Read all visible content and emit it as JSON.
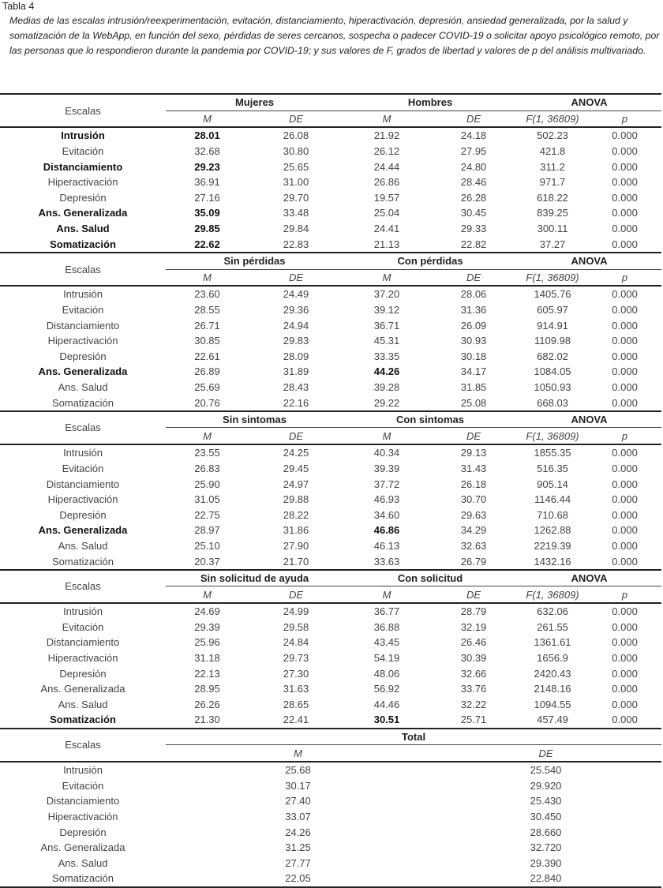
{
  "caption": "Tabla 4",
  "description": "Medias de las escalas intrusión/reexperimentación, evitación, distanciamiento, hiperactivación, depresión, ansiedad generalizada, por la salud y somatización de la WebApp, en función del sexo, pérdidas de seres cercanos, sospecha o padecer COVID-19 o solicitar apoyo psicológico remoto, por las personas que lo respondieron durante la pandemia por COVID-19; y sus valores de F, grados de libertad y valores de p del análisis multivariado.",
  "table": {
    "sections": [
      {
        "label": "Escalas",
        "groups": [
          "Mujeres",
          "Hombres",
          "ANOVA"
        ],
        "subheaders": [
          "M",
          "DE",
          "M",
          "DE",
          "F(1, 36809)",
          "p"
        ],
        "rows": [
          {
            "cells": [
              "Intrusión",
              "28.01",
              "26.08",
              "21.92",
              "24.18",
              "502.23",
              "0.000"
            ],
            "bold": [
              0,
              1
            ]
          },
          {
            "cells": [
              "Evitación",
              "32.68",
              "30.80",
              "26.12",
              "27.95",
              "421.8",
              "0.000"
            ]
          },
          {
            "cells": [
              "Distanciamiento",
              "29.23",
              "25.65",
              "24.44",
              "24.80",
              "311.2",
              "0.000"
            ],
            "bold": [
              0,
              1
            ]
          },
          {
            "cells": [
              "Hiperactivación",
              "36.91",
              "31.00",
              "26.86",
              "28.46",
              "971.7",
              "0.000"
            ]
          },
          {
            "cells": [
              "Depresión",
              "27.16",
              "29.70",
              "19.57",
              "26.28",
              "618.22",
              "0.000"
            ]
          },
          {
            "cells": [
              "Ans. Generalizada",
              "35.09",
              "33.48",
              "25.04",
              "30.45",
              "839.25",
              "0.000"
            ],
            "bold": [
              0,
              1
            ]
          },
          {
            "cells": [
              "Ans. Salud",
              "29.85",
              "29.84",
              "24.41",
              "29.33",
              "300.11",
              "0.000"
            ],
            "bold": [
              0,
              1
            ]
          },
          {
            "cells": [
              "Somatización",
              "22.62",
              "22.83",
              "21.13",
              "22.82",
              "37.27",
              "0.000"
            ],
            "bold": [
              0,
              1
            ]
          }
        ]
      },
      {
        "label": "Escalas",
        "groups": [
          "Sin pérdidas",
          "Con pérdidas",
          "ANOVA"
        ],
        "subheaders": [
          "M",
          "DE",
          "M",
          "DE",
          "F(1, 36809)",
          "p"
        ],
        "rows": [
          {
            "cells": [
              "Intrusión",
              "23.60",
              "24.49",
              "37.20",
              "28.06",
              "1405.76",
              "0.000"
            ]
          },
          {
            "cells": [
              "Evitación",
              "28.55",
              "29.36",
              "39.12",
              "31.36",
              "605.97",
              "0.000"
            ]
          },
          {
            "cells": [
              "Distanciamiento",
              "26.71",
              "24.94",
              "36.71",
              "26.09",
              "914.91",
              "0.000"
            ]
          },
          {
            "cells": [
              "Hiperactivación",
              "30.85",
              "29.83",
              "45.31",
              "30.93",
              "1109.98",
              "0.000"
            ]
          },
          {
            "cells": [
              "Depresión",
              "22.61",
              "28.09",
              "33.35",
              "30.18",
              "682.02",
              "0.000"
            ]
          },
          {
            "cells": [
              "Ans. Generalizada",
              "26.89",
              "31.89",
              "44.26",
              "34.17",
              "1084.05",
              "0.000"
            ],
            "bold": [
              0,
              3
            ]
          },
          {
            "cells": [
              "Ans. Salud",
              "25.69",
              "28.43",
              "39.28",
              "31.85",
              "1050.93",
              "0.000"
            ]
          },
          {
            "cells": [
              "Somatización",
              "20.76",
              "22.16",
              "29.22",
              "25.08",
              "668.03",
              "0.000"
            ]
          }
        ]
      },
      {
        "label": "Escalas",
        "groups": [
          "Sin sintomas",
          "Con sintomas",
          "ANOVA"
        ],
        "subheaders": [
          "M",
          "DE",
          "M",
          "DE",
          "F(1, 36809)",
          "p"
        ],
        "rows": [
          {
            "cells": [
              "Intrusión",
              "23.55",
              "24.25",
              "40.34",
              "29.13",
              "1855.35",
              "0.000"
            ]
          },
          {
            "cells": [
              "Evitación",
              "26.83",
              "29.45",
              "39.39",
              "31.43",
              "516.35",
              "0.000"
            ]
          },
          {
            "cells": [
              "Distanciamiento",
              "25.90",
              "24.97",
              "37.72",
              "26.18",
              "905.14",
              "0.000"
            ]
          },
          {
            "cells": [
              "Hiperactivación",
              "31.05",
              "29.88",
              "46.93",
              "30.70",
              "1146.44",
              "0.000"
            ]
          },
          {
            "cells": [
              "Depresión",
              "22.75",
              "28.22",
              "34.60",
              "29.63",
              "710.68",
              "0.000"
            ]
          },
          {
            "cells": [
              "Ans. Generalizada",
              "28.97",
              "31.86",
              "46.86",
              "34.29",
              "1262.88",
              "0.000"
            ],
            "bold": [
              0,
              3
            ]
          },
          {
            "cells": [
              "Ans. Salud",
              "25.10",
              "27.90",
              "46.13",
              "32.63",
              "2219.39",
              "0.000"
            ]
          },
          {
            "cells": [
              "Somatización",
              "20.37",
              "21.70",
              "33.63",
              "26.79",
              "1432.16",
              "0.000"
            ]
          }
        ]
      },
      {
        "label": "Escalas",
        "groups": [
          "Sin solicitud de ayuda",
          "Con solicitud",
          "ANOVA"
        ],
        "subheaders": [
          "M",
          "DE",
          "M",
          "DE",
          "F(1, 36809)",
          "p"
        ],
        "rows": [
          {
            "cells": [
              "Intrusión",
              "24.69",
              "24.99",
              "36.77",
              "28.79",
              "632.06",
              "0.000"
            ]
          },
          {
            "cells": [
              "Evitación",
              "29.39",
              "29.58",
              "36.88",
              "32.19",
              "261.55",
              "0.000"
            ]
          },
          {
            "cells": [
              "Distanciamiento",
              "25.96",
              "24.84",
              "43.45",
              "26.46",
              "1361.61",
              "0.000"
            ]
          },
          {
            "cells": [
              "Hiperactivación",
              "31.18",
              "29.73",
              "54.19",
              "30.39",
              "1656.9",
              "0.000"
            ]
          },
          {
            "cells": [
              "Depresión",
              "22.13",
              "27.30",
              "48.06",
              "32.66",
              "2420.43",
              "0.000"
            ]
          },
          {
            "cells": [
              "Ans. Generalizada",
              "28.95",
              "31.63",
              "56.92",
              "33.76",
              "2148.16",
              "0.000"
            ]
          },
          {
            "cells": [
              "Ans. Salud",
              "26.26",
              "28.65",
              "44.46",
              "32.22",
              "1094.55",
              "0.000"
            ]
          },
          {
            "cells": [
              "Somatización",
              "21.30",
              "22.41",
              "30.51",
              "25.71",
              "457.49",
              "0.000"
            ],
            "bold": [
              0,
              3
            ]
          }
        ]
      },
      {
        "label": "Escalas",
        "groups": [
          "Total"
        ],
        "subheaders": [
          "M",
          "DE"
        ],
        "rows": [
          {
            "cells": [
              "Intrusión",
              "25.68",
              "25.540"
            ]
          },
          {
            "cells": [
              "Evitación",
              "30.17",
              "29.920"
            ]
          },
          {
            "cells": [
              "Distanciamiento",
              "27.40",
              "25.430"
            ]
          },
          {
            "cells": [
              "Hiperactivación",
              "33.07",
              "30.450"
            ]
          },
          {
            "cells": [
              "Depresión",
              "24.26",
              "28.660"
            ]
          },
          {
            "cells": [
              "Ans. Generalizada",
              "31.25",
              "32.720"
            ]
          },
          {
            "cells": [
              "Ans. Salud",
              "27.77",
              "29.390"
            ]
          },
          {
            "cells": [
              "Somatización",
              "22.05",
              "22.840"
            ]
          }
        ]
      }
    ]
  }
}
